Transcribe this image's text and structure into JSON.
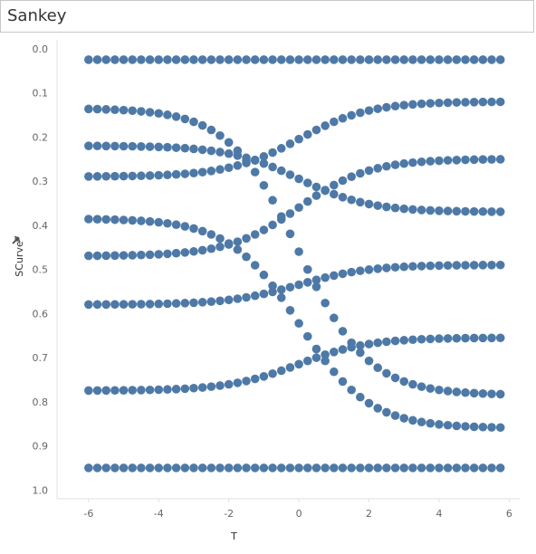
{
  "sheet": {
    "title": "Sankey"
  },
  "colors": {
    "point": "#4e79a7",
    "axis": "#e0e0e0",
    "tick_text": "#666666"
  },
  "icons": {
    "ylabel_icon": "pin-icon"
  },
  "chart_data": {
    "type": "scatter",
    "xlabel": "T",
    "ylabel": "SCurve",
    "xlim": [
      -6.9,
      6.3
    ],
    "ylim": [
      -0.02,
      1.02
    ],
    "y_reversed": true,
    "grid": false,
    "x_ticks": [
      -6,
      -4,
      -2,
      0,
      2,
      4,
      6
    ],
    "x_tick_labels": [
      "-6",
      "-4",
      "-2",
      "0",
      "2",
      "4",
      "6"
    ],
    "y_ticks": [
      0,
      0.1,
      0.2,
      0.3,
      0.4,
      0.5,
      0.6,
      0.7,
      0.8,
      0.9,
      1.0
    ],
    "y_tick_labels": [
      "0.0",
      "0.1",
      "0.2",
      "0.3",
      "0.4",
      "0.5",
      "0.6",
      "0.7",
      "0.8",
      "0.9",
      "1.0"
    ],
    "x_range": {
      "start": -6,
      "end": 5.75,
      "step": 0.25
    },
    "curves": [
      {
        "start": 0.025,
        "end": 0.025
      },
      {
        "start": 0.135,
        "end": 0.785
      },
      {
        "start": 0.22,
        "end": 0.37
      },
      {
        "start": 0.29,
        "end": 0.12
      },
      {
        "start": 0.385,
        "end": 0.86
      },
      {
        "start": 0.47,
        "end": 0.25
      },
      {
        "start": 0.58,
        "end": 0.49
      },
      {
        "start": 0.775,
        "end": 0.655
      },
      {
        "start": 0.95,
        "end": 0.95
      }
    ]
  }
}
